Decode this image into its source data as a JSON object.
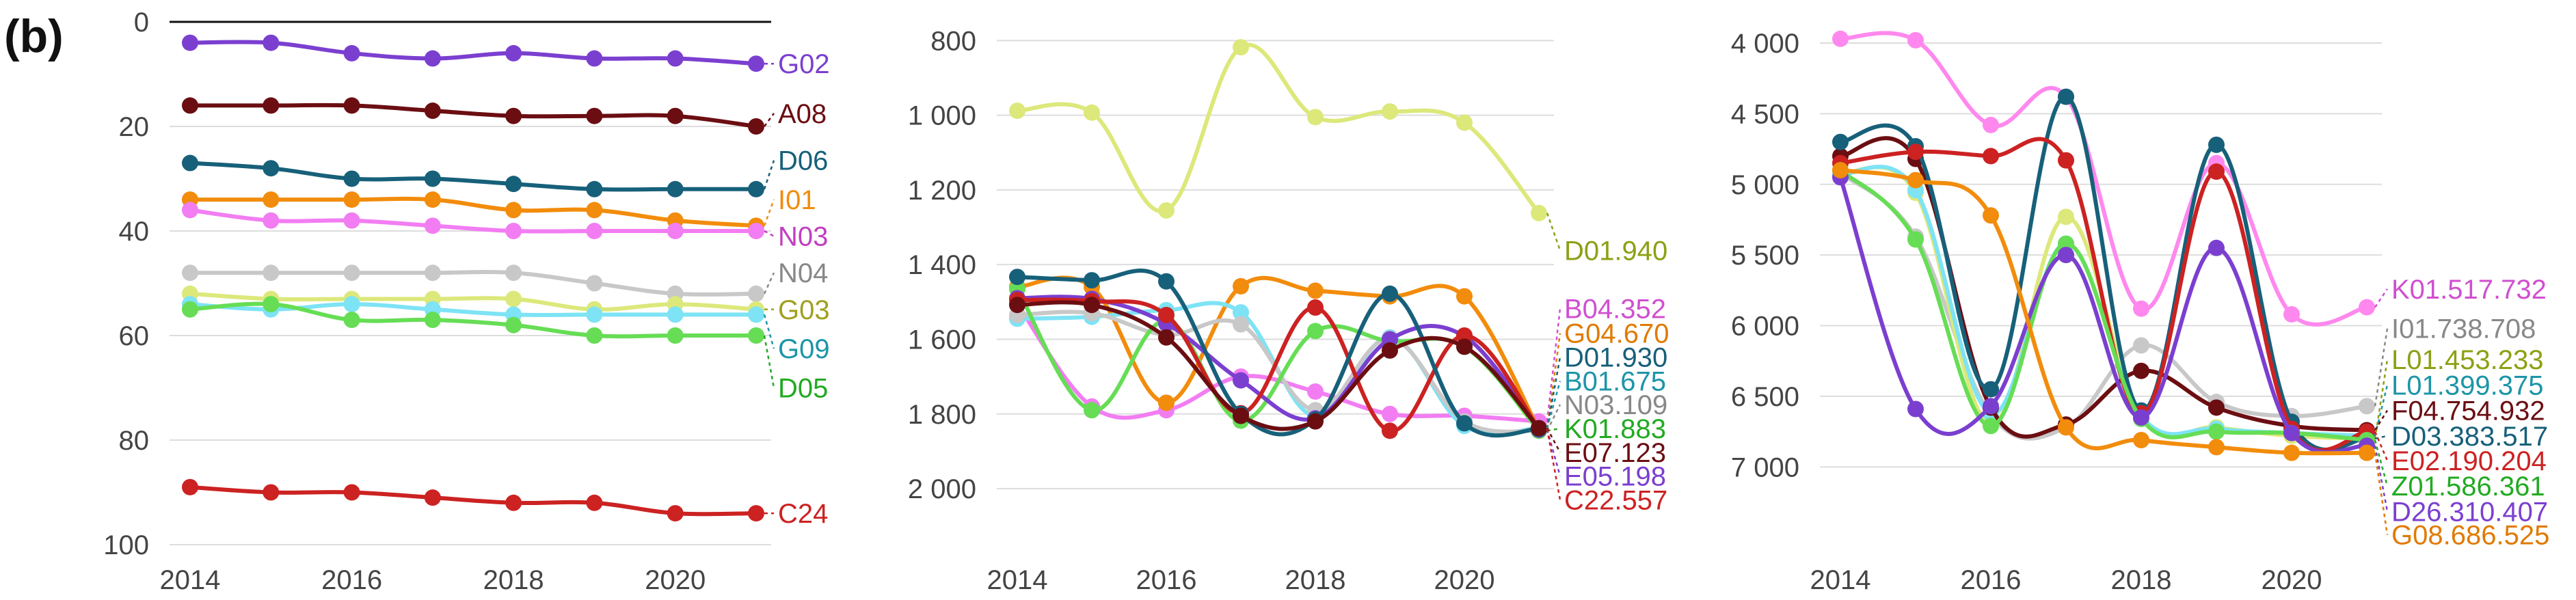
{
  "panel_label": "(b)",
  "chart_data": [
    {
      "type": "line",
      "title": "",
      "xlabel": "",
      "ylabel": "",
      "y_reversed": true,
      "ylim": [
        0,
        100
      ],
      "xlim": [
        2014,
        2021
      ],
      "x": [
        2014,
        2015,
        2016,
        2017,
        2018,
        2019,
        2020,
        2021
      ],
      "xticks": [
        {
          "v": 2014,
          "t": "2014"
        },
        {
          "v": 2016,
          "t": "2016"
        },
        {
          "v": 2018,
          "t": "2018"
        },
        {
          "v": 2020,
          "t": "2020"
        }
      ],
      "yticks": [
        {
          "v": 0,
          "t": "0"
        },
        {
          "v": 20,
          "t": "20"
        },
        {
          "v": 40,
          "t": "40"
        },
        {
          "v": 60,
          "t": "60"
        },
        {
          "v": 80,
          "t": "80"
        },
        {
          "v": 100,
          "t": "100"
        }
      ],
      "zero_line": 0,
      "grid": true,
      "series": [
        {
          "name": "G02",
          "color": "#7B3FD0",
          "values": [
            4,
            4,
            6,
            7,
            6,
            7,
            7,
            8
          ]
        },
        {
          "name": "A08",
          "color": "#6B0E12",
          "values": [
            16,
            16,
            16,
            17,
            18,
            18,
            18,
            20
          ]
        },
        {
          "name": "D06",
          "color": "#17607A",
          "values": [
            27,
            28,
            30,
            30,
            31,
            32,
            32,
            32
          ]
        },
        {
          "name": "I01",
          "color": "#F28C0C",
          "values": [
            34,
            34,
            34,
            34,
            36,
            36,
            38,
            39
          ]
        },
        {
          "name": "N03",
          "color": "#F27DF2",
          "values": [
            36,
            38,
            38,
            39,
            40,
            40,
            40,
            40
          ]
        },
        {
          "name": "N04",
          "color": "#C8C8C8",
          "values": [
            48,
            48,
            48,
            48,
            48,
            50,
            52,
            52
          ]
        },
        {
          "name": "G03",
          "color": "#DCE87A",
          "values": [
            52,
            53,
            53,
            53,
            53,
            55,
            54,
            55
          ]
        },
        {
          "name": "G09",
          "color": "#7DE3F5",
          "values": [
            54,
            55,
            54,
            55,
            56,
            56,
            56,
            56
          ]
        },
        {
          "name": "D05",
          "color": "#66DD55",
          "values": [
            55,
            54,
            57,
            57,
            58,
            60,
            60,
            60
          ]
        },
        {
          "name": "C24",
          "color": "#CC2222",
          "values": [
            89,
            90,
            90,
            91,
            92,
            92,
            94,
            94
          ]
        }
      ],
      "end_labels": [
        {
          "text": "G02",
          "color": "#7B3FD0",
          "series": "G02",
          "at": 8
        },
        {
          "text": "A08",
          "color": "#6B0E12",
          "series": "A08",
          "at": 17.5
        },
        {
          "text": "D06",
          "color": "#17607A",
          "series": "D06",
          "at": 26.5
        },
        {
          "text": "I01",
          "color": "#F28C0C",
          "series": "I01",
          "at": 34
        },
        {
          "text": "N03",
          "color": "#C040C0",
          "series": "N03",
          "at": 41
        },
        {
          "text": "N04",
          "color": "#888888",
          "series": "N04",
          "at": 48
        },
        {
          "text": "G03",
          "color": "#A0A020",
          "series": "G03",
          "at": 55
        },
        {
          "text": "G09",
          "color": "#1D95A8",
          "series": "G09",
          "at": 62.5
        },
        {
          "text": "D05",
          "color": "#22AA22",
          "series": "D05",
          "at": 70
        },
        {
          "text": "C24",
          "color": "#CC2222",
          "series": "C24",
          "at": 94
        }
      ]
    },
    {
      "type": "line",
      "title": "",
      "xlabel": "",
      "ylabel": "",
      "y_reversed": true,
      "ylim": [
        750,
        2150
      ],
      "xlim": [
        2014,
        2021
      ],
      "x": [
        2014,
        2015,
        2016,
        2017,
        2018,
        2019,
        2020,
        2021
      ],
      "xticks": [
        {
          "v": 2014,
          "t": "2014"
        },
        {
          "v": 2016,
          "t": "2016"
        },
        {
          "v": 2018,
          "t": "2018"
        },
        {
          "v": 2020,
          "t": "2020"
        }
      ],
      "yticks": [
        {
          "v": 800,
          "t": "800"
        },
        {
          "v": 1000,
          "t": "1 000"
        },
        {
          "v": 1200,
          "t": "1 200"
        },
        {
          "v": 1400,
          "t": "1 400"
        },
        {
          "v": 1600,
          "t": "1 600"
        },
        {
          "v": 1800,
          "t": "1 800"
        },
        {
          "v": 2000,
          "t": "2 000"
        }
      ],
      "grid": true,
      "series": [
        {
          "name": "D01",
          "color": "#DCE87A",
          "values": [
            988,
            993,
            1255,
            818,
            1005,
            990,
            1020,
            1262
          ]
        },
        {
          "name": "B04",
          "color": "#F27DF2",
          "values": [
            1505,
            1780,
            1790,
            1700,
            1740,
            1800,
            1805,
            1820
          ]
        },
        {
          "name": "G04",
          "color": "#F28C0C",
          "values": [
            1460,
            1460,
            1770,
            1458,
            1470,
            1485,
            1485,
            1842
          ]
        },
        {
          "name": "B01",
          "color": "#7DE3F5",
          "values": [
            1545,
            1540,
            1522,
            1528,
            1808,
            1595,
            1832,
            1838
          ]
        },
        {
          "name": "N03",
          "color": "#C8C8C8",
          "values": [
            1535,
            1530,
            1588,
            1560,
            1790,
            1598,
            1820,
            1845
          ]
        },
        {
          "name": "K01",
          "color": "#66DD55",
          "values": [
            1465,
            1790,
            1550,
            1818,
            1578,
            1605,
            1620,
            1845
          ]
        },
        {
          "name": "E05",
          "color": "#7B3FD0",
          "values": [
            1490,
            1492,
            1558,
            1710,
            1812,
            1600,
            1592,
            1842
          ]
        },
        {
          "name": "C22",
          "color": "#CC2222",
          "values": [
            1495,
            1498,
            1535,
            1798,
            1515,
            1845,
            1590,
            1840
          ]
        },
        {
          "name": "D01b",
          "color": "#17607A",
          "values": [
            1433,
            1442,
            1445,
            1800,
            1815,
            1478,
            1825,
            1840
          ]
        },
        {
          "name": "E07",
          "color": "#6B0E12",
          "values": [
            1508,
            1508,
            1595,
            1805,
            1820,
            1630,
            1620,
            1838
          ]
        }
      ],
      "end_labels": [
        {
          "text": "D01.940",
          "color": "#8DA014",
          "series": "D01",
          "at": 1362
        },
        {
          "text": "B04.352",
          "color": "#D04FD0",
          "series": "B04",
          "at": 1518
        },
        {
          "text": "G04.670",
          "color": "#E07A00",
          "series": "G04",
          "at": 1584
        },
        {
          "text": "D01.930",
          "color": "#17607A",
          "series": "D01b",
          "at": 1648
        },
        {
          "text": "B01.675",
          "color": "#1D95A8",
          "series": "B01",
          "at": 1712
        },
        {
          "text": "N03.109",
          "color": "#888888",
          "series": "N03",
          "at": 1775
        },
        {
          "text": "K01.883",
          "color": "#22AA22",
          "series": "K01",
          "at": 1839
        },
        {
          "text": "E07.123",
          "color": "#6B0E12",
          "series": "E07",
          "at": 1903
        },
        {
          "text": "E05.198",
          "color": "#7B3FD0",
          "series": "E05",
          "at": 1966
        },
        {
          "text": "C22.557",
          "color": "#CC2222",
          "series": "C22",
          "at": 2030
        }
      ]
    },
    {
      "type": "line",
      "title": "",
      "xlabel": "",
      "ylabel": "",
      "y_reversed": true,
      "ylim": [
        3850,
        7550
      ],
      "xlim": [
        2014,
        2021
      ],
      "x": [
        2014,
        2015,
        2016,
        2017,
        2018,
        2019,
        2020,
        2021
      ],
      "xticks": [
        {
          "v": 2014,
          "t": "2014"
        },
        {
          "v": 2016,
          "t": "2016"
        },
        {
          "v": 2018,
          "t": "2018"
        },
        {
          "v": 2020,
          "t": "2020"
        }
      ],
      "yticks": [
        {
          "v": 4000,
          "t": "4 000"
        },
        {
          "v": 4500,
          "t": "4 500"
        },
        {
          "v": 5000,
          "t": "5 000"
        },
        {
          "v": 5500,
          "t": "5 500"
        },
        {
          "v": 6000,
          "t": "6 000"
        },
        {
          "v": 6500,
          "t": "6 500"
        },
        {
          "v": 7000,
          "t": "7 000"
        }
      ],
      "grid": true,
      "series": [
        {
          "name": "K01",
          "color": "#FF88EE",
          "values": [
            3970,
            3980,
            4580,
            4380,
            5880,
            4850,
            5920,
            5870
          ]
        },
        {
          "name": "I01",
          "color": "#C8C8C8",
          "values": [
            4920,
            5370,
            6630,
            6720,
            6140,
            6540,
            6640,
            6570
          ]
        },
        {
          "name": "L01a",
          "color": "#DCE87A",
          "values": [
            4920,
            5060,
            6700,
            5230,
            6650,
            6720,
            6780,
            6800
          ]
        },
        {
          "name": "L01b",
          "color": "#7DE3F5",
          "values": [
            4930,
            5040,
            6620,
            5420,
            6640,
            6730,
            6760,
            6780
          ]
        },
        {
          "name": "F04",
          "color": "#6B0E12",
          "values": [
            4800,
            4820,
            6580,
            6700,
            6320,
            6580,
            6710,
            6740
          ]
        },
        {
          "name": "D03",
          "color": "#17607A",
          "values": [
            4700,
            4730,
            6450,
            4380,
            6600,
            4720,
            6680,
            6800
          ]
        },
        {
          "name": "E02",
          "color": "#CC2222",
          "values": [
            4850,
            4770,
            4800,
            4830,
            6620,
            4910,
            6730,
            6750
          ]
        },
        {
          "name": "Z01",
          "color": "#66DD55",
          "values": [
            4900,
            5390,
            6710,
            5420,
            6660,
            6750,
            6760,
            6810
          ]
        },
        {
          "name": "D26",
          "color": "#7B3FD0",
          "values": [
            4950,
            6590,
            6570,
            5500,
            6650,
            5450,
            6760,
            6850
          ]
        },
        {
          "name": "G08",
          "color": "#F28C0C",
          "values": [
            4900,
            4970,
            5220,
            6720,
            6810,
            6860,
            6900,
            6900
          ]
        }
      ],
      "end_labels": [
        {
          "text": "K01.517.732",
          "color": "#D04FD0",
          "series": "K01",
          "at": 5740
        },
        {
          "text": "I01.738.708",
          "color": "#888888",
          "series": "I01",
          "at": 6020
        },
        {
          "text": "L01.453.233",
          "color": "#8DA014",
          "series": "L01a",
          "at": 6240
        },
        {
          "text": "L01.399.375",
          "color": "#1D95A8",
          "series": "L01b",
          "at": 6420
        },
        {
          "text": "F04.754.932",
          "color": "#6B0E12",
          "series": "F04",
          "at": 6600
        },
        {
          "text": "D03.383.517",
          "color": "#17607A",
          "series": "D03",
          "at": 6780
        },
        {
          "text": "E02.190.204",
          "color": "#CC2222",
          "series": "E02",
          "at": 6955
        },
        {
          "text": "Z01.586.361",
          "color": "#22AA22",
          "series": "Z01",
          "at": 7135
        },
        {
          "text": "D26.310.407",
          "color": "#7B3FD0",
          "series": "D26",
          "at": 7315
        },
        {
          "text": "G08.686.525",
          "color": "#E07A00",
          "series": "G08",
          "at": 7480
        }
      ]
    }
  ]
}
